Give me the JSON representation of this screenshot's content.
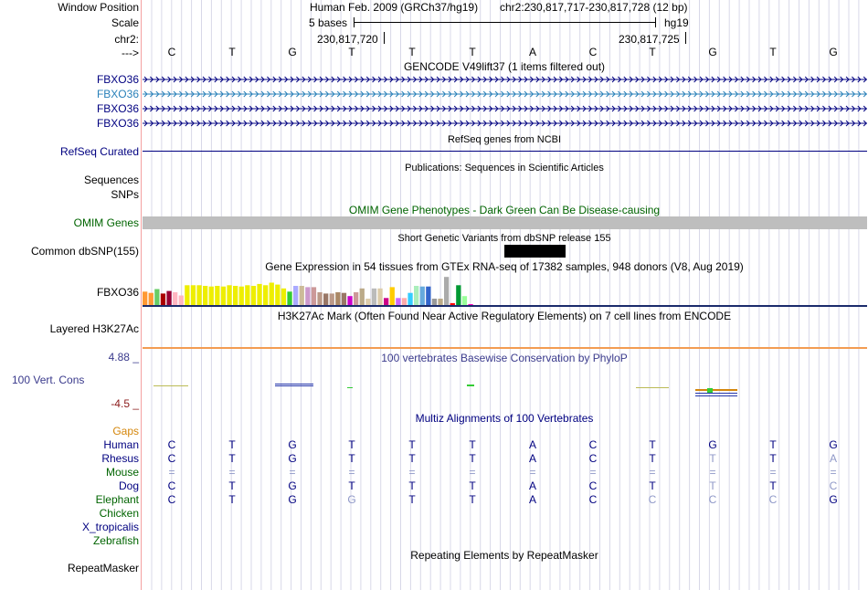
{
  "header": {
    "window_position_label": "Window Position",
    "scale_label": "Scale",
    "chr_label": "chr2:",
    "arrow_label": "--->",
    "assembly": "Human Feb. 2009 (GRCh37/hg19)",
    "position": "chr2:230,817,717-230,817,728 (12 bp)",
    "scale_text": "5 bases",
    "scale_db": "hg19",
    "coord_left": "230,817,720",
    "coord_right": "230,817,725"
  },
  "sequence": [
    "C",
    "T",
    "G",
    "T",
    "T",
    "T",
    "A",
    "C",
    "T",
    "G",
    "T",
    "G"
  ],
  "gencode": {
    "title": "GENCODE V49lift37 (1 items filtered out)",
    "transcripts": [
      {
        "name": "FBXO36",
        "color": "#000080"
      },
      {
        "name": "FBXO36",
        "color": "#2980b9"
      },
      {
        "name": "FBXO36",
        "color": "#000080"
      },
      {
        "name": "FBXO36",
        "color": "#000080"
      }
    ]
  },
  "refseq": {
    "title": "RefSeq genes from NCBI",
    "label": "RefSeq Curated",
    "color": "#000080"
  },
  "publications": {
    "title": "Publications: Sequences in Scientific Articles",
    "labels": [
      "Sequences",
      "SNPs"
    ]
  },
  "omim": {
    "title": "OMIM Gene Phenotypes - Dark Green Can Be Disease-causing",
    "label": "OMIM Genes",
    "color": "#006400",
    "bar_color": "#bebebe"
  },
  "dbsnp": {
    "title": "Short Genetic Variants from dbSNP release 155",
    "label": "Common dbSNP(155)"
  },
  "gtex": {
    "title": "Gene Expression in 54 tissues from GTEx RNA-seq of 17382 samples, 948 donors (V8, Aug 2019)",
    "label": "FBXO36",
    "bars": [
      {
        "v": 0.42,
        "c": "#ff9933"
      },
      {
        "v": 0.38,
        "c": "#ff9933"
      },
      {
        "v": 0.5,
        "c": "#66cc66"
      },
      {
        "v": 0.36,
        "c": "#aa0000"
      },
      {
        "v": 0.44,
        "c": "#990033"
      },
      {
        "v": 0.4,
        "c": "#ffb6c1"
      },
      {
        "v": 0.3,
        "c": "#ffb6c1"
      },
      {
        "v": 0.62,
        "c": "#eeee00"
      },
      {
        "v": 0.62,
        "c": "#eeee00"
      },
      {
        "v": 0.62,
        "c": "#eeee00"
      },
      {
        "v": 0.6,
        "c": "#eeee00"
      },
      {
        "v": 0.58,
        "c": "#eeee00"
      },
      {
        "v": 0.6,
        "c": "#eeee00"
      },
      {
        "v": 0.58,
        "c": "#eeee00"
      },
      {
        "v": 0.62,
        "c": "#eeee00"
      },
      {
        "v": 0.6,
        "c": "#eeee00"
      },
      {
        "v": 0.58,
        "c": "#eeee00"
      },
      {
        "v": 0.62,
        "c": "#eeee00"
      },
      {
        "v": 0.6,
        "c": "#eeee00"
      },
      {
        "v": 0.66,
        "c": "#eeee00"
      },
      {
        "v": 0.62,
        "c": "#eeee00"
      },
      {
        "v": 0.7,
        "c": "#eeee00"
      },
      {
        "v": 0.64,
        "c": "#eeee00"
      },
      {
        "v": 0.52,
        "c": "#eeee00"
      },
      {
        "v": 0.42,
        "c": "#33cc33"
      },
      {
        "v": 0.6,
        "c": "#aaaaff"
      },
      {
        "v": 0.6,
        "c": "#ccbb99"
      },
      {
        "v": 0.56,
        "c": "#cc99cc"
      },
      {
        "v": 0.56,
        "c": "#cc9999"
      },
      {
        "v": 0.4,
        "c": "#bb9988"
      },
      {
        "v": 0.36,
        "c": "#997766"
      },
      {
        "v": 0.36,
        "c": "#bb9988"
      },
      {
        "v": 0.4,
        "c": "#aa8866"
      },
      {
        "v": 0.38,
        "c": "#997766"
      },
      {
        "v": 0.28,
        "c": "#cc00cc"
      },
      {
        "v": 0.4,
        "c": "#cc9999"
      },
      {
        "v": 0.52,
        "c": "#bbaa88"
      },
      {
        "v": 0.2,
        "c": "#ddccaa"
      },
      {
        "v": 0.52,
        "c": "#bbbbbb"
      },
      {
        "v": 0.52,
        "c": "#ddccaa"
      },
      {
        "v": 0.22,
        "c": "#cc0088"
      },
      {
        "v": 0.56,
        "c": "#ffcc00"
      },
      {
        "v": 0.22,
        "c": "#cc66ff"
      },
      {
        "v": 0.22,
        "c": "#ffaaaa"
      },
      {
        "v": 0.38,
        "c": "#33ccff"
      },
      {
        "v": 0.6,
        "c": "#aaeebb"
      },
      {
        "v": 0.58,
        "c": "#66aadd"
      },
      {
        "v": 0.58,
        "c": "#3366cc"
      },
      {
        "v": 0.2,
        "c": "#999999"
      },
      {
        "v": 0.2,
        "c": "#bbaa88"
      },
      {
        "v": 0.88,
        "c": "#aaaaaa"
      },
      {
        "v": 0.06,
        "c": "#ff0000"
      },
      {
        "v": 0.62,
        "c": "#009933"
      },
      {
        "v": 0.28,
        "c": "#99ff99"
      },
      {
        "v": 0.03,
        "c": "#ff00bb"
      }
    ]
  },
  "h3k27ac": {
    "title": "H3K27Ac Mark (Often Found Near Active Regulatory Elements) on 7 cell lines from ENCODE",
    "label": "Layered H3K27Ac"
  },
  "phylop": {
    "title": "100 vertebrates Basewise Conservation by PhyloP",
    "label": "100 Vert. Cons",
    "max": "4.88 _",
    "min": "-4.5 _",
    "color": "#3a3a8c",
    "min_color": "#8b1a1a"
  },
  "multiz": {
    "title": "Multiz Alignments of 100 Vertebrates",
    "gaps_label": "Gaps",
    "gaps_color": "#d4860b",
    "species": [
      {
        "name": "Human",
        "color": "#000080",
        "bases": [
          "C",
          "T",
          "G",
          "T",
          "T",
          "T",
          "A",
          "C",
          "T",
          "G",
          "T",
          "G"
        ],
        "faded": [
          false,
          false,
          false,
          false,
          false,
          false,
          false,
          false,
          false,
          false,
          false,
          false
        ]
      },
      {
        "name": "Rhesus",
        "color": "#000080",
        "bases": [
          "C",
          "T",
          "G",
          "T",
          "T",
          "T",
          "A",
          "C",
          "T",
          "T",
          "T",
          "A"
        ],
        "faded": [
          false,
          false,
          false,
          false,
          false,
          false,
          false,
          false,
          false,
          true,
          false,
          true
        ]
      },
      {
        "name": "Mouse",
        "color": "#006400",
        "bases": [
          "=",
          "=",
          "=",
          "=",
          "=",
          "=",
          "=",
          "=",
          "=",
          "=",
          "=",
          "="
        ],
        "faded": [
          true,
          true,
          true,
          true,
          true,
          true,
          true,
          true,
          true,
          true,
          true,
          true
        ]
      },
      {
        "name": "Dog",
        "color": "#000080",
        "bases": [
          "C",
          "T",
          "G",
          "T",
          "T",
          "T",
          "A",
          "C",
          "T",
          "T",
          "T",
          "C"
        ],
        "faded": [
          false,
          false,
          false,
          false,
          false,
          false,
          false,
          false,
          false,
          true,
          false,
          true
        ]
      },
      {
        "name": "Elephant",
        "color": "#006400",
        "bases": [
          "C",
          "T",
          "G",
          "G",
          "T",
          "T",
          "A",
          "C",
          "C",
          "C",
          "C",
          "G"
        ],
        "faded": [
          false,
          false,
          false,
          true,
          false,
          false,
          false,
          false,
          true,
          true,
          true,
          false
        ]
      },
      {
        "name": "Chicken",
        "color": "#006400",
        "bases": [],
        "faded": []
      },
      {
        "name": "X_tropicalis",
        "color": "#000080",
        "bases": [],
        "faded": []
      },
      {
        "name": "Zebrafish",
        "color": "#006400",
        "bases": [],
        "faded": []
      }
    ]
  },
  "repeatmasker": {
    "title": "Repeating Elements by RepeatMasker",
    "label": "RepeatMasker"
  },
  "colors": {
    "base_fill_black": "#000000",
    "guide_line": "#d8d8e8",
    "divider": "#f4a0a0",
    "h3k27ac_line": "#f39c52"
  }
}
